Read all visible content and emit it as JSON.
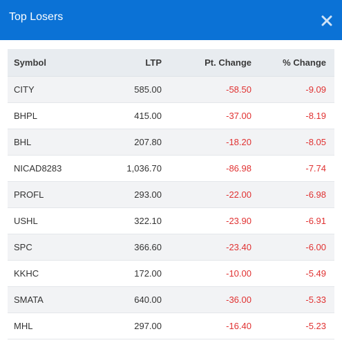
{
  "dialog": {
    "title": "Top Losers",
    "close_icon": "close-icon"
  },
  "colors": {
    "header_bg": "#0b72d6",
    "negative": "#e03131"
  },
  "table": {
    "headers": {
      "symbol": "Symbol",
      "ltp": "LTP",
      "pt_change": "Pt. Change",
      "pct_change": "% Change"
    },
    "rows": [
      {
        "symbol": "CITY",
        "ltp": "585.00",
        "pt_change": "-58.50",
        "pct_change": "-9.09"
      },
      {
        "symbol": "BHPL",
        "ltp": "415.00",
        "pt_change": "-37.00",
        "pct_change": "-8.19"
      },
      {
        "symbol": "BHL",
        "ltp": "207.80",
        "pt_change": "-18.20",
        "pct_change": "-8.05"
      },
      {
        "symbol": "NICAD8283",
        "ltp": "1,036.70",
        "pt_change": "-86.98",
        "pct_change": "-7.74"
      },
      {
        "symbol": "PROFL",
        "ltp": "293.00",
        "pt_change": "-22.00",
        "pct_change": "-6.98"
      },
      {
        "symbol": "USHL",
        "ltp": "322.10",
        "pt_change": "-23.90",
        "pct_change": "-6.91"
      },
      {
        "symbol": "SPC",
        "ltp": "366.60",
        "pt_change": "-23.40",
        "pct_change": "-6.00"
      },
      {
        "symbol": "KKHC",
        "ltp": "172.00",
        "pt_change": "-10.00",
        "pct_change": "-5.49"
      },
      {
        "symbol": "SMATA",
        "ltp": "640.00",
        "pt_change": "-36.00",
        "pct_change": "-5.33"
      },
      {
        "symbol": "MHL",
        "ltp": "297.00",
        "pt_change": "-16.40",
        "pct_change": "-5.23"
      }
    ]
  }
}
